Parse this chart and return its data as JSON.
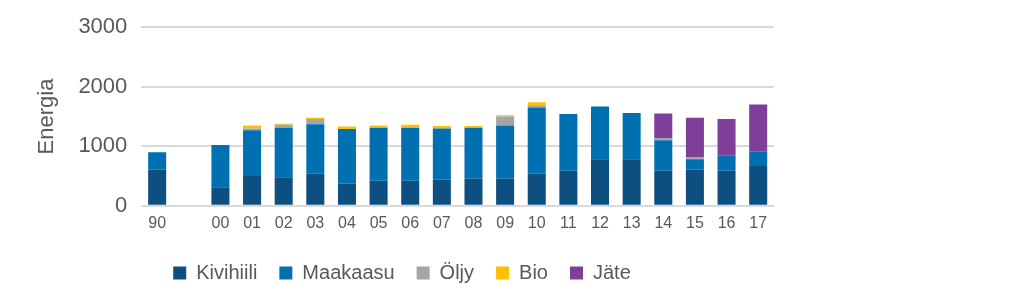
{
  "chart_data": {
    "type": "bar",
    "ylabel": "Energia",
    "stacked": true,
    "categories": [
      "90",
      null,
      "00",
      "01",
      "02",
      "03",
      "04",
      "05",
      "06",
      "07",
      "08",
      "09",
      "10",
      "11",
      "12",
      "13",
      "14",
      "15",
      "16",
      "17"
    ],
    "series": [
      {
        "name": "Kivihiili",
        "color": "#0d4f80",
        "values": [
          610,
          null,
          310,
          500,
          480,
          540,
          370,
          420,
          420,
          440,
          460,
          460,
          540,
          590,
          780,
          780,
          590,
          610,
          590,
          670
        ]
      },
      {
        "name": "Maakaasu",
        "color": "#0070b0",
        "values": [
          290,
          null,
          710,
          770,
          830,
          830,
          920,
          890,
          890,
          860,
          850,
          890,
          1110,
          950,
          890,
          780,
          510,
          170,
          250,
          240
        ]
      },
      {
        "name": "Öljy",
        "color": "#a5a5a5",
        "values": [
          0,
          null,
          0,
          30,
          50,
          90,
          0,
          0,
          0,
          0,
          0,
          150,
          40,
          0,
          0,
          0,
          40,
          30,
          0,
          0
        ]
      },
      {
        "name": "Bio",
        "color": "#ffc000",
        "values": [
          0,
          null,
          0,
          50,
          20,
          20,
          40,
          40,
          50,
          40,
          30,
          20,
          50,
          0,
          0,
          0,
          0,
          0,
          0,
          0
        ]
      },
      {
        "name": "Jäte",
        "color": "#7f3f98",
        "values": [
          0,
          null,
          0,
          0,
          0,
          0,
          0,
          0,
          0,
          0,
          0,
          0,
          0,
          0,
          0,
          0,
          410,
          670,
          620,
          790
        ]
      }
    ],
    "ylim": [
      0,
      3000
    ],
    "yticks": [
      0,
      1000,
      2000,
      3000
    ],
    "grid": "y",
    "legend": "bottom"
  }
}
